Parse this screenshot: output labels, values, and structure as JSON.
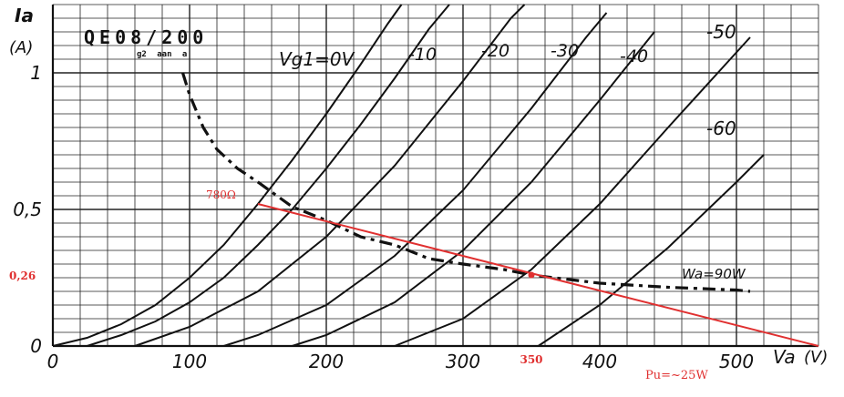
{
  "chart_data": {
    "type": "line",
    "title": "QE08/200",
    "title_sub": "g2 aan a",
    "xlabel": "Va",
    "xunit": "(V)",
    "ylabel": "Ia",
    "yunit": "(A)",
    "xlim": [
      0,
      560
    ],
    "ylim": [
      0,
      1.25
    ],
    "xticks": [
      {
        "value": 0,
        "label": "0"
      },
      {
        "value": 100,
        "label": "100"
      },
      {
        "value": 200,
        "label": "200"
      },
      {
        "value": 300,
        "label": "300"
      },
      {
        "value": 400,
        "label": "400"
      },
      {
        "value": 500,
        "label": "500"
      }
    ],
    "yticks": [
      {
        "value": 0,
        "label": "0"
      },
      {
        "value": 0.5,
        "label": "0,5"
      },
      {
        "value": 1,
        "label": "1"
      }
    ],
    "grid": true,
    "series": [
      {
        "name": "Vg1=0V",
        "label": "Vg1=0V",
        "points": [
          [
            0,
            0
          ],
          [
            25,
            0.03
          ],
          [
            50,
            0.08
          ],
          [
            75,
            0.15
          ],
          [
            100,
            0.25
          ],
          [
            125,
            0.37
          ],
          [
            150,
            0.52
          ],
          [
            175,
            0.68
          ],
          [
            200,
            0.85
          ],
          [
            225,
            1.03
          ],
          [
            245,
            1.18
          ],
          [
            255,
            1.25
          ]
        ]
      },
      {
        "name": "-10",
        "label": "-10",
        "points": [
          [
            25,
            0
          ],
          [
            50,
            0.04
          ],
          [
            75,
            0.09
          ],
          [
            100,
            0.16
          ],
          [
            125,
            0.25
          ],
          [
            150,
            0.37
          ],
          [
            175,
            0.5
          ],
          [
            200,
            0.65
          ],
          [
            225,
            0.81
          ],
          [
            250,
            0.98
          ],
          [
            275,
            1.16
          ],
          [
            290,
            1.25
          ]
        ]
      },
      {
        "name": "-20",
        "label": "-20",
        "points": [
          [
            60,
            0
          ],
          [
            100,
            0.07
          ],
          [
            150,
            0.2
          ],
          [
            200,
            0.4
          ],
          [
            250,
            0.66
          ],
          [
            300,
            0.97
          ],
          [
            335,
            1.2
          ],
          [
            345,
            1.25
          ]
        ]
      },
      {
        "name": "-30",
        "label": "-30",
        "points": [
          [
            125,
            0
          ],
          [
            150,
            0.04
          ],
          [
            200,
            0.15
          ],
          [
            250,
            0.33
          ],
          [
            300,
            0.57
          ],
          [
            350,
            0.87
          ],
          [
            390,
            1.13
          ],
          [
            405,
            1.22
          ]
        ]
      },
      {
        "name": "-40",
        "label": "-40",
        "points": [
          [
            175,
            0
          ],
          [
            200,
            0.04
          ],
          [
            250,
            0.16
          ],
          [
            300,
            0.35
          ],
          [
            350,
            0.6
          ],
          [
            400,
            0.9
          ],
          [
            440,
            1.15
          ]
        ]
      },
      {
        "name": "-50",
        "label": "-50",
        "points": [
          [
            250,
            0
          ],
          [
            300,
            0.1
          ],
          [
            350,
            0.28
          ],
          [
            400,
            0.52
          ],
          [
            450,
            0.8
          ],
          [
            490,
            1.02
          ],
          [
            510,
            1.13
          ]
        ]
      },
      {
        "name": "-60",
        "label": "-60",
        "points": [
          [
            355,
            0
          ],
          [
            400,
            0.15
          ],
          [
            450,
            0.36
          ],
          [
            500,
            0.6
          ],
          [
            520,
            0.7
          ]
        ]
      }
    ],
    "dissipation_curve": {
      "label": "Wa=90W",
      "points": [
        [
          95,
          1.0
        ],
        [
          100,
          0.92
        ],
        [
          105,
          0.86
        ],
        [
          110,
          0.8
        ],
        [
          120,
          0.72
        ],
        [
          135,
          0.65
        ],
        [
          150,
          0.6
        ],
        [
          175,
          0.51
        ],
        [
          200,
          0.46
        ],
        [
          225,
          0.4
        ],
        [
          250,
          0.37
        ],
        [
          275,
          0.32
        ],
        [
          300,
          0.3
        ],
        [
          330,
          0.28
        ],
        [
          350,
          0.26
        ],
        [
          400,
          0.23
        ],
        [
          450,
          0.215
        ],
        [
          500,
          0.205
        ],
        [
          510,
          0.2
        ]
      ]
    },
    "load_line": {
      "resistance_label": "780Ω",
      "points": [
        [
          150,
          0.52
        ],
        [
          560,
          0
        ]
      ],
      "operating_point": {
        "x": 350,
        "y": 0.26
      },
      "x_marker_label": "350",
      "y_marker_label": "0,26",
      "power_label": "Pu=~25W"
    },
    "colors": {
      "curves": "#111111",
      "grid": "#222222",
      "load_line": "#e03030"
    }
  }
}
